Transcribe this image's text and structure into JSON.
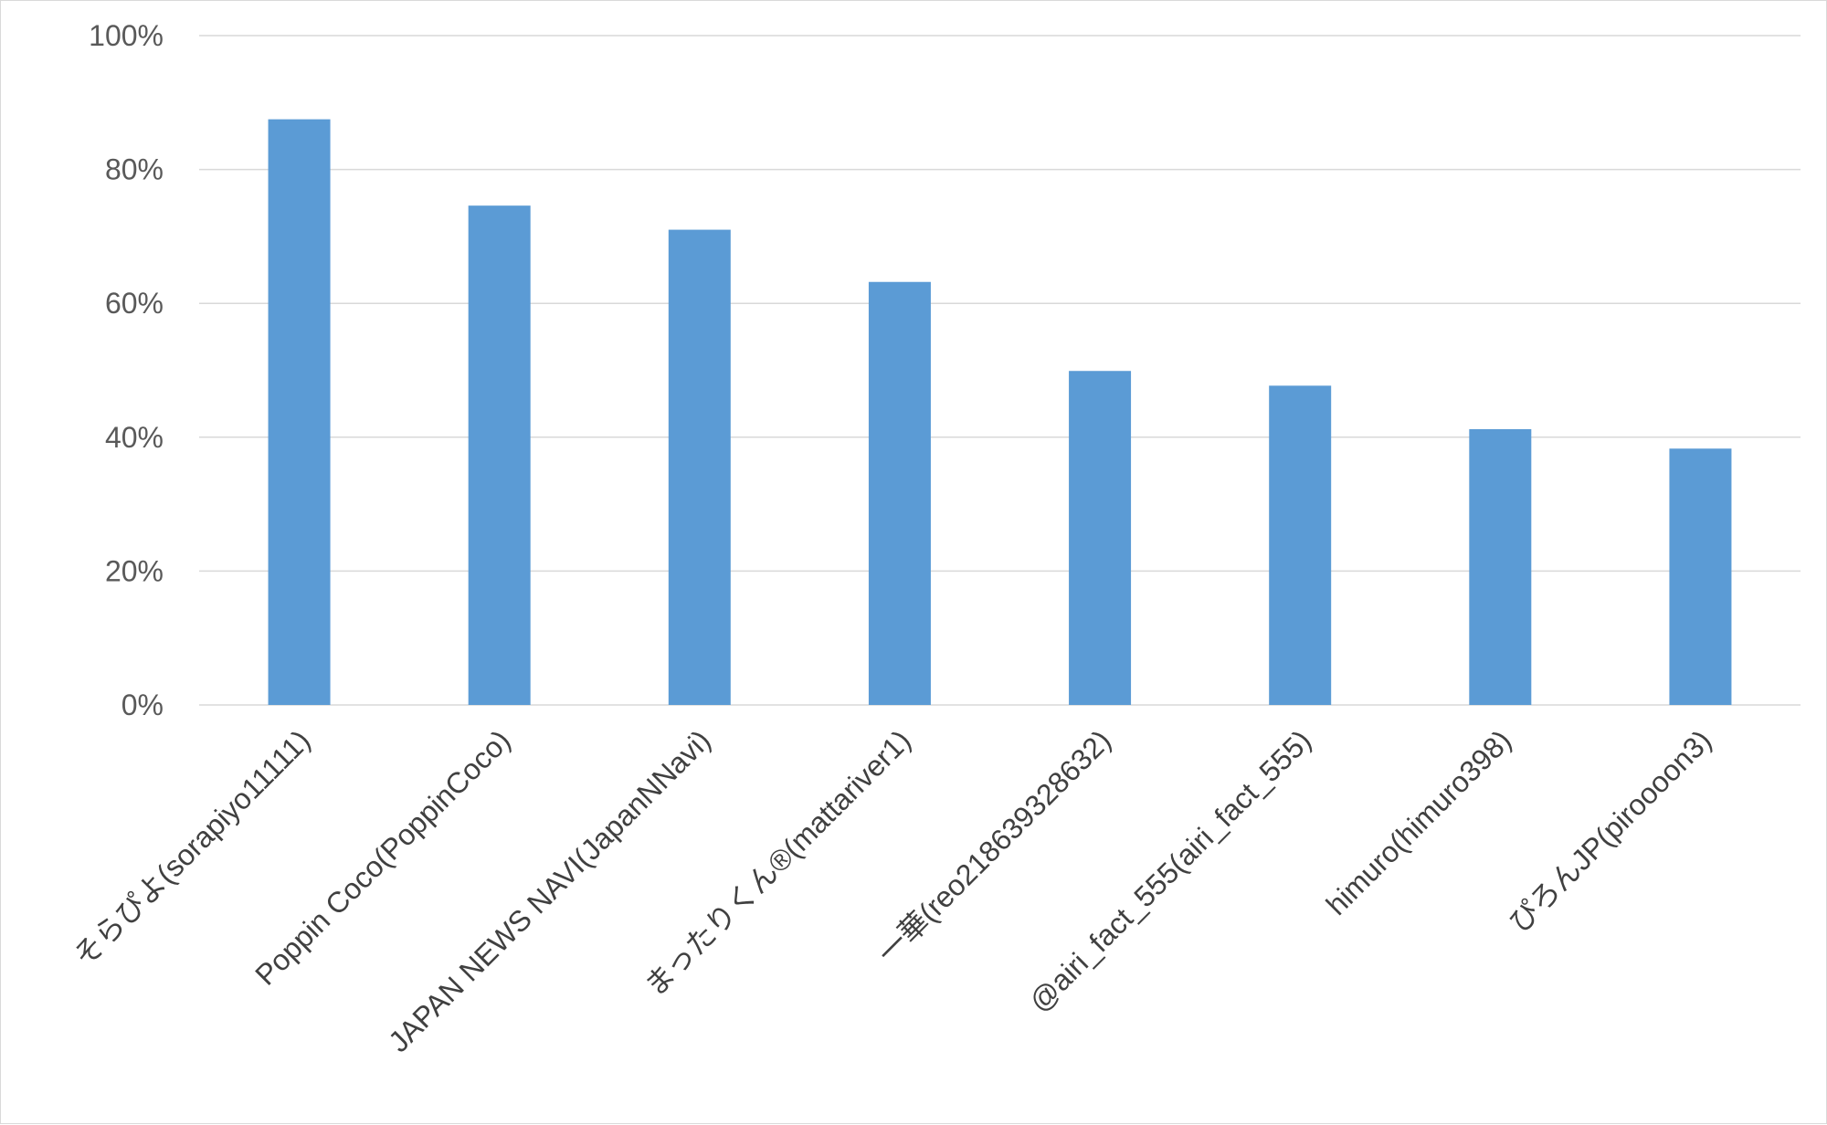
{
  "chart_data": {
    "type": "bar",
    "categories": [
      "そらぴよ(sorapiyo11111)",
      "Poppin Coco(PoppinCoco)",
      "JAPAN NEWS NAVI(JapanNNavi)",
      "まったりくん®(mattariver1)",
      "一華(reo21863932863​2)",
      "@airi_fact_555(airi_fact_555)",
      "himuro(himuro398)",
      "ぴろんJP(piroooon3)"
    ],
    "series": [
      {
        "values": [
          0.875,
          0.746,
          0.71,
          0.632,
          0.499,
          0.477,
          0.412,
          0.383
        ]
      }
    ],
    "yticks": [
      "0%",
      "20%",
      "40%",
      "60%",
      "80%",
      "100%"
    ],
    "ylim": [
      0,
      1
    ],
    "grid": true,
    "bar_color": "#5b9bd5",
    "title": "",
    "xlabel": "",
    "ylabel": ""
  }
}
